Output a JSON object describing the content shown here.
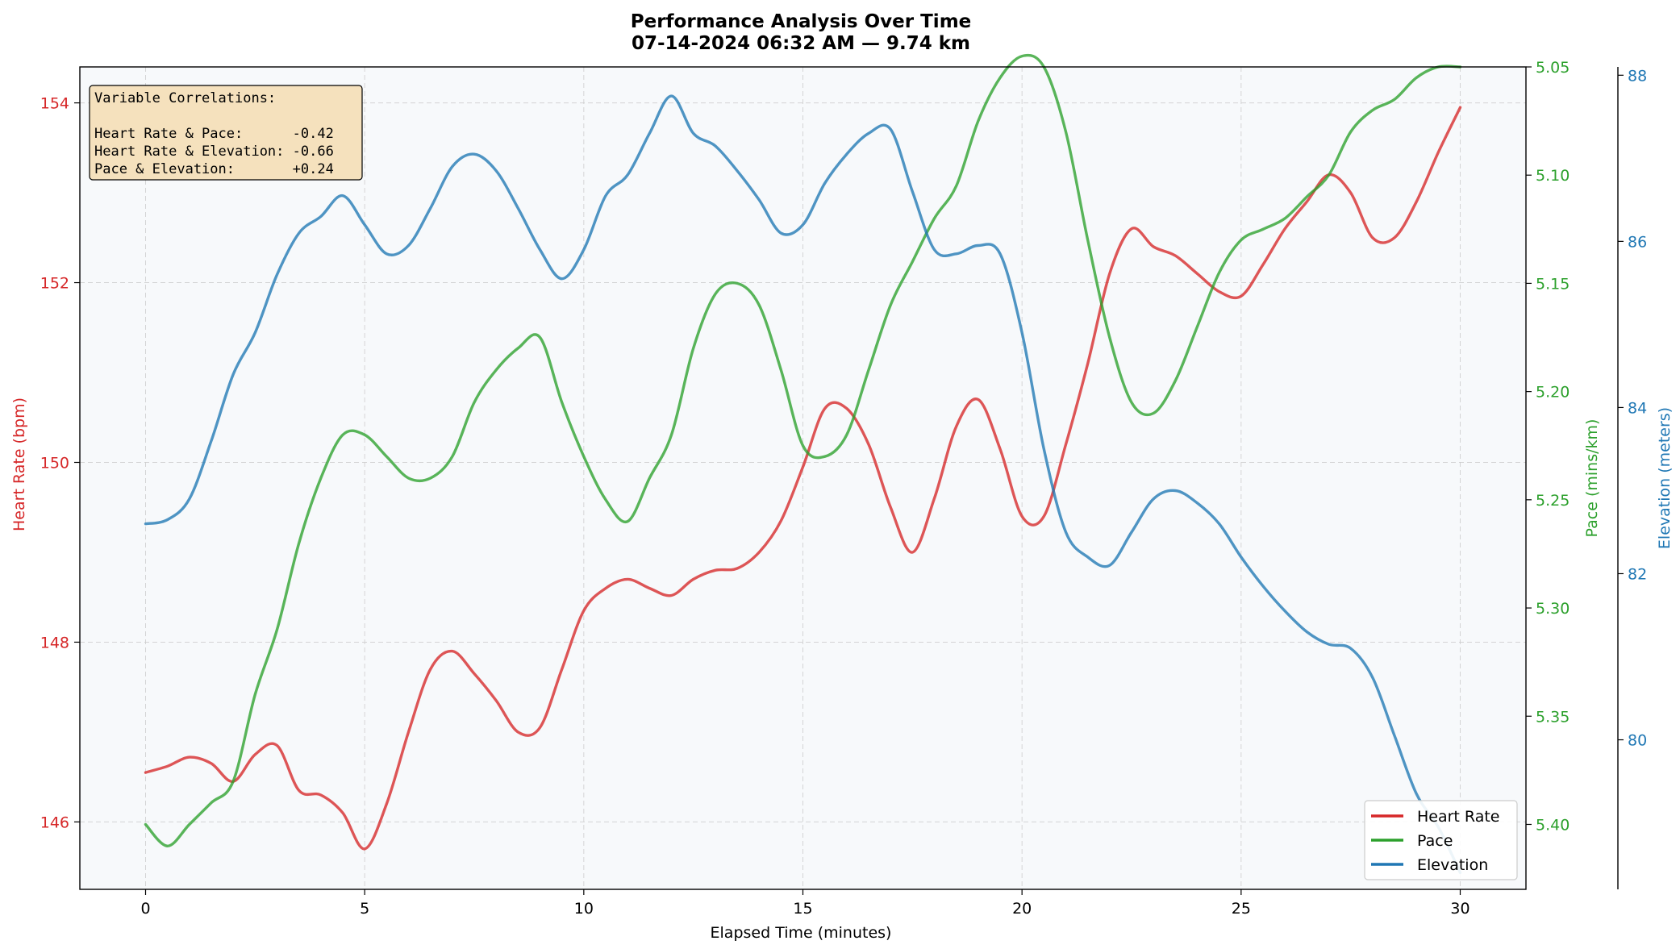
{
  "chart_data": {
    "type": "line",
    "title": "Performance Analysis Over Time",
    "subtitle": "07-14-2024 06:32 AM — 9.74 km",
    "xlabel": "Elapsed Time (minutes)",
    "xlim": [
      -1.5,
      31.5
    ],
    "xticks": [
      0,
      5,
      10,
      15,
      20,
      25,
      30
    ],
    "grid": true,
    "legend_position": "lower-right",
    "axes": {
      "hr": {
        "label": "Heart Rate (bpm)",
        "ylim": [
          145.25,
          154.4
        ],
        "ticks": [
          146,
          148,
          150,
          152,
          154
        ],
        "color": "#d62728"
      },
      "pace": {
        "label": "Pace (mins/km)",
        "ylim": [
          5.05,
          5.43
        ],
        "ticks": [
          5.05,
          5.1,
          5.15,
          5.2,
          5.25,
          5.3,
          5.35,
          5.4
        ],
        "inverted": true,
        "color": "#2ca02c"
      },
      "elev": {
        "label": "Elevation (meters)",
        "ylim": [
          78.2,
          88.1
        ],
        "ticks": [
          80,
          82,
          84,
          86,
          88
        ],
        "color": "#1f77b4"
      }
    },
    "series": [
      {
        "name": "Heart Rate",
        "axis": "hr",
        "color": "#d62728",
        "x": [
          0,
          0.5,
          1,
          1.5,
          2,
          2.5,
          3,
          3.5,
          4,
          4.5,
          5,
          5.5,
          6,
          6.5,
          7,
          7.5,
          8,
          8.5,
          9,
          9.5,
          10,
          10.5,
          11,
          11.5,
          12,
          12.5,
          13,
          13.5,
          14,
          14.5,
          15,
          15.5,
          16,
          16.5,
          17,
          17.5,
          18,
          18.5,
          19,
          19.5,
          20,
          20.5,
          21,
          21.5,
          22,
          22.5,
          23,
          23.5,
          24,
          24.5,
          25,
          25.5,
          26,
          26.5,
          27,
          27.5,
          28,
          28.5,
          29,
          29.5,
          30
        ],
        "values": [
          146.55,
          146.62,
          146.72,
          146.65,
          146.45,
          146.75,
          146.85,
          146.35,
          146.3,
          146.1,
          145.7,
          146.2,
          147.0,
          147.7,
          147.9,
          147.65,
          147.35,
          147.0,
          147.05,
          147.7,
          148.35,
          148.6,
          148.7,
          148.6,
          148.52,
          148.7,
          148.8,
          148.82,
          149.0,
          149.35,
          149.95,
          150.6,
          150.6,
          150.2,
          149.5,
          149.0,
          149.6,
          150.4,
          150.7,
          150.15,
          149.4,
          149.4,
          150.2,
          151.1,
          152.1,
          152.6,
          152.4,
          152.3,
          152.1,
          151.9,
          151.85,
          152.2,
          152.6,
          152.9,
          153.2,
          153.0,
          152.5,
          152.5,
          152.9,
          153.45,
          153.95
        ]
      },
      {
        "name": "Pace",
        "axis": "pace",
        "color": "#2ca02c",
        "x": [
          0,
          0.5,
          1,
          1.5,
          2,
          2.5,
          3,
          3.5,
          4,
          4.5,
          5,
          5.5,
          6,
          6.5,
          7,
          7.5,
          8,
          8.5,
          9,
          9.5,
          10,
          10.5,
          11,
          11.5,
          12,
          12.5,
          13,
          13.5,
          14,
          14.5,
          15,
          15.5,
          16,
          16.5,
          17,
          17.5,
          18,
          18.5,
          19,
          19.5,
          20,
          20.5,
          21,
          21.5,
          22,
          22.5,
          23,
          23.5,
          24,
          24.5,
          25,
          25.5,
          26,
          26.5,
          27,
          27.5,
          28,
          28.5,
          29,
          29.5,
          30
        ],
        "values": [
          5.4,
          5.41,
          5.4,
          5.39,
          5.38,
          5.34,
          5.31,
          5.27,
          5.24,
          5.22,
          5.22,
          5.23,
          5.24,
          5.24,
          5.23,
          5.205,
          5.19,
          5.18,
          5.175,
          5.205,
          5.23,
          5.25,
          5.26,
          5.24,
          5.22,
          5.18,
          5.155,
          5.15,
          5.16,
          5.19,
          5.225,
          5.23,
          5.22,
          5.19,
          5.16,
          5.14,
          5.12,
          5.105,
          5.075,
          5.055,
          5.045,
          5.05,
          5.08,
          5.13,
          5.175,
          5.205,
          5.21,
          5.195,
          5.17,
          5.145,
          5.13,
          5.125,
          5.12,
          5.11,
          5.1,
          5.08,
          5.07,
          5.065,
          5.055,
          5.05,
          5.05
        ]
      },
      {
        "name": "Elevation",
        "axis": "elev",
        "color": "#1f77b4",
        "x": [
          0,
          0.5,
          1,
          1.5,
          2,
          2.5,
          3,
          3.5,
          4,
          4.5,
          5,
          5.5,
          6,
          6.5,
          7,
          7.5,
          8,
          8.5,
          9,
          9.5,
          10,
          10.5,
          11,
          11.5,
          12,
          12.5,
          13,
          13.5,
          14,
          14.5,
          15,
          15.5,
          16,
          16.5,
          17,
          17.5,
          18,
          18.5,
          19,
          19.5,
          20,
          20.5,
          21,
          21.5,
          22,
          22.5,
          23,
          23.5,
          24,
          24.5,
          25,
          25.5,
          26,
          26.5,
          27,
          27.5,
          28,
          28.5,
          29,
          29.5,
          30
        ],
        "values": [
          82.6,
          82.65,
          82.9,
          83.6,
          84.4,
          84.9,
          85.6,
          86.1,
          86.3,
          86.55,
          86.2,
          85.85,
          85.95,
          86.4,
          86.9,
          87.05,
          86.85,
          86.4,
          85.9,
          85.55,
          85.9,
          86.55,
          86.8,
          87.3,
          87.75,
          87.3,
          87.15,
          86.85,
          86.5,
          86.1,
          86.2,
          86.7,
          87.05,
          87.3,
          87.35,
          86.6,
          85.9,
          85.85,
          85.95,
          85.85,
          84.9,
          83.5,
          82.5,
          82.2,
          82.1,
          82.5,
          82.9,
          83.0,
          82.85,
          82.6,
          82.2,
          81.85,
          81.55,
          81.3,
          81.15,
          81.1,
          80.75,
          80.05,
          79.35,
          78.95,
          78.4
        ]
      }
    ],
    "annotation": {
      "heading": "Variable Correlations:",
      "lines": [
        "Heart Rate & Pace:      -0.42",
        "Heart Rate & Elevation: -0.66",
        "Pace & Elevation:       +0.24"
      ]
    }
  },
  "colors": {
    "plot_background": "#f7f9fb",
    "annotation_box": "#f5e1bd",
    "grid": "#cccccc"
  }
}
